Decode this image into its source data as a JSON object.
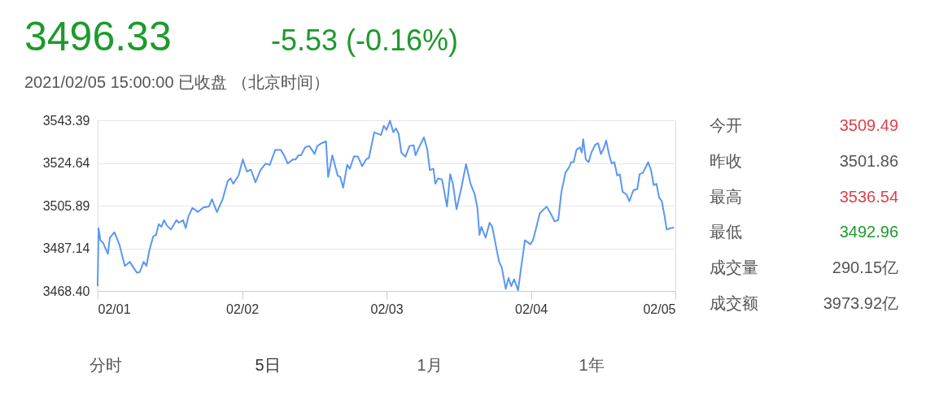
{
  "chart_data": {
    "type": "line",
    "title": "3496.33",
    "subtitle": "-5.53 (-0.16%)",
    "annotations": [
      "2021/02/05 15:00:00  已收盘 （北京时间）",
      "今开",
      "3509.49",
      "昨收",
      "3501.86",
      "最高",
      "3536.54",
      "最低",
      "3492.96",
      "成交量",
      "290.15亿",
      "成交额",
      "3973.92亿",
      "分时",
      "5日",
      "1月",
      "1年"
    ],
    "xlim": [
      "2021-02-01",
      "2021-02-05"
    ],
    "xticks": [
      {
        "value": "2021-02-01",
        "label": "02/01"
      },
      {
        "value": "2021-02-02",
        "label": "02/02"
      },
      {
        "value": "2021-02-03",
        "label": "02/03"
      },
      {
        "value": "2021-02-04",
        "label": "02/04"
      },
      {
        "value": "2021-02-05",
        "label": "02/05"
      }
    ],
    "ylim": [
      3468.4,
      3543.39
    ],
    "yticks": [
      {
        "value": 3468.4,
        "label": "3468.40"
      },
      3487.14,
      3505.89,
      3524.64,
      3543.39
    ],
    "grid": "y",
    "legend": false,
    "marker": "none",
    "line_style": "solid",
    "series": [
      {
        "color": "#5b97f2",
        "x": [
          "2021-02-01T00:00",
          "2021-02-01T00:09",
          "2021-02-01T00:27",
          "2021-02-01T00:55",
          "2021-02-01T01:42",
          "2021-02-01T02:02",
          "2021-02-01T02:47",
          "2021-02-01T03:36",
          "2021-02-01T04:31",
          "2021-02-01T05:20",
          "2021-02-01T06:32",
          "2021-02-01T06:59",
          "2021-02-01T07:39",
          "2021-02-01T08:07",
          "2021-02-01T08:34",
          "2021-02-01T09:14",
          "2021-02-01T09:42",
          "2021-02-01T10:09",
          "2021-02-01T10:35",
          "2021-02-01T11:02",
          "2021-02-01T11:30",
          "2021-02-01T12:10",
          "2021-02-01T13:05",
          "2021-02-01T13:31",
          "2021-02-01T14:12",
          "2021-02-01T14:38",
          "2021-02-01T15:06",
          "2021-02-01T15:46",
          "2021-02-01T16:41",
          "2021-02-01T17:34",
          "2021-02-01T18:29",
          "2021-02-01T19:00",
          "2021-02-01T19:49",
          "2021-02-01T20:44",
          "2021-02-01T21:37",
          "2021-02-01T22:05",
          "2021-02-01T22:32",
          "2021-02-01T23:25",
          "2021-02-02T00:07",
          "2021-02-02T00:48",
          "2021-02-02T01:28",
          "2021-02-02T02:14",
          "2021-02-02T03:03",
          "2021-02-02T03:56",
          "2021-02-02T04:36",
          "2021-02-02T05:31",
          "2021-02-02T06:26",
          "2021-02-02T07:06",
          "2021-02-02T07:34",
          "2021-02-02T08:27",
          "2021-02-02T08:54",
          "2021-02-02T09:22",
          "2021-02-02T09:48",
          "2021-02-02T10:29",
          "2021-02-02T11:10",
          "2021-02-02T12:03",
          "2021-02-02T12:30",
          "2021-02-02T13:11",
          "2021-02-02T13:57",
          "2021-02-02T14:18",
          "2021-02-02T15:00",
          "2021-02-02T15:53",
          "2021-02-02T16:19",
          "2021-02-02T16:48",
          "2021-02-02T17:28",
          "2021-02-02T17:54",
          "2021-02-02T18:36",
          "2021-02-02T19:16",
          "2021-02-02T19:57",
          "2021-02-02T20:37",
          "2021-02-02T21:04",
          "2021-02-02T21:58",
          "2021-02-02T23:05",
          "2021-02-02T23:33",
          "2021-02-03T00:00",
          "2021-02-03T00:35",
          "2021-02-03T01:08",
          "2021-02-03T01:34",
          "2021-02-03T02:01",
          "2021-02-03T02:28",
          "2021-02-03T03:09",
          "2021-02-03T03:49",
          "2021-02-03T04:31",
          "2021-02-03T04:49",
          "2021-02-03T05:37",
          "2021-02-03T06:13",
          "2021-02-03T06:45",
          "2021-02-03T07:12",
          "2021-02-03T07:48",
          "2021-02-03T08:07",
          "2021-02-03T08:34",
          "2021-02-03T09:14",
          "2021-02-03T10:03",
          "2021-02-03T10:35",
          "2021-02-03T11:02",
          "2021-02-03T11:38",
          "2021-02-03T12:24",
          "2021-02-03T13:13",
          "2021-02-03T13:58",
          "2021-02-03T14:40",
          "2021-02-03T15:06",
          "2021-02-03T15:27",
          "2021-02-03T15:46",
          "2021-02-03T16:28",
          "2021-02-03T17:08",
          "2021-02-03T17:34",
          "2021-02-03T18:16",
          "2021-02-03T18:42",
          "2021-02-03T19:09",
          "2021-02-03T19:49",
          "2021-02-03T20:17",
          "2021-02-03T20:44",
          "2021-02-03T21:12",
          "2021-02-03T21:52",
          "2021-02-03T22:19",
          "2021-02-03T23:00",
          "2021-02-03T23:54",
          "2021-02-04T00:20",
          "2021-02-04T00:48",
          "2021-02-04T01:28",
          "2021-02-04T02:36",
          "2021-02-04T03:16",
          "2021-02-04T03:56",
          "2021-02-04T04:32",
          "2021-02-04T05:04",
          "2021-02-04T05:44",
          "2021-02-04T06:26",
          "2021-02-04T06:39",
          "2021-02-04T07:06",
          "2021-02-04T07:34",
          "2021-02-04T08:08",
          "2021-02-04T08:27",
          "2021-02-04T08:41",
          "2021-02-04T09:07",
          "2021-02-04T09:35",
          "2021-02-04T10:02",
          "2021-02-04T10:42",
          "2021-02-04T11:10",
          "2021-02-04T11:37",
          "2021-02-04T12:04",
          "2021-02-04T12:30",
          "2021-02-04T12:58",
          "2021-02-04T13:25",
          "2021-02-04T13:52",
          "2021-02-04T14:20",
          "2021-02-04T14:46",
          "2021-02-04T15:13",
          "2021-02-04T15:53",
          "2021-02-04T16:21",
          "2021-02-04T17:01",
          "2021-02-04T17:41",
          "2021-02-04T18:03",
          "2021-02-04T18:36",
          "2021-02-04T19:03",
          "2021-02-04T19:29",
          "2021-02-04T19:57",
          "2021-02-04T20:24",
          "2021-02-04T20:51",
          "2021-02-04T21:17",
          "2021-02-04T21:45",
          "2021-02-04T22:12",
          "2021-02-04T22:34",
          "2021-02-04T23:05",
          "2021-02-04T23:47"
        ],
        "values": [
          3470.5,
          3496.0,
          3490.7,
          3489.5,
          3484.7,
          3491.8,
          3494.2,
          3488.9,
          3479.4,
          3481.2,
          3476.4,
          3476.7,
          3481.2,
          3479.4,
          3485.9,
          3492.4,
          3493.0,
          3497.8,
          3496.6,
          3499.5,
          3497.2,
          3495.4,
          3499.5,
          3498.4,
          3499.5,
          3496.0,
          3501.3,
          3504.9,
          3503.1,
          3505.1,
          3505.5,
          3508.7,
          3503.1,
          3508.4,
          3516.7,
          3517.9,
          3515.5,
          3519.1,
          3526.2,
          3520.9,
          3521.7,
          3516.1,
          3521.5,
          3524.4,
          3523.8,
          3530.4,
          3530.4,
          3527.4,
          3524.4,
          3526.2,
          3526.2,
          3528.0,
          3528.0,
          3531.5,
          3532.1,
          3528.6,
          3532.1,
          3533.3,
          3534.1,
          3518.5,
          3528.0,
          3519.1,
          3518.5,
          3513.8,
          3523.8,
          3522.1,
          3527.6,
          3527.4,
          3523.2,
          3526.2,
          3526.8,
          3538.1,
          3536.9,
          3541.0,
          3539.2,
          3543.2,
          3538.1,
          3539.8,
          3537.5,
          3529.2,
          3527.4,
          3532.1,
          3532.4,
          3528.0,
          3532.7,
          3535.9,
          3530.9,
          3521.5,
          3522.1,
          3515.5,
          3517.9,
          3517.3,
          3505.5,
          3519.7,
          3515.5,
          3504.3,
          3513.2,
          3524.1,
          3515.5,
          3510.8,
          3504.9,
          3493.0,
          3496.6,
          3491.8,
          3498.4,
          3496.6,
          3487.1,
          3481.2,
          3478.8,
          3469.3,
          3474.1,
          3470.5,
          3473.5,
          3468.7,
          3477.6,
          3490.7,
          3488.9,
          3490.7,
          3495.4,
          3502.5,
          3505.5,
          3502.5,
          3499.0,
          3499.5,
          3512.0,
          3520.3,
          3523.2,
          3525.0,
          3525.0,
          3530.4,
          3531.5,
          3529.2,
          3535.1,
          3526.2,
          3525.0,
          3529.2,
          3532.7,
          3533.3,
          3528.6,
          3530.9,
          3534.5,
          3528.6,
          3524.4,
          3525.0,
          3519.1,
          3519.7,
          3512.0,
          3510.8,
          3507.8,
          3512.6,
          3513.2,
          3519.7,
          3520.3,
          3522.7,
          3525.0,
          3521.5,
          3514.9,
          3515.5,
          3509.6,
          3507.8,
          3501.3,
          3495.4,
          3495.9,
          3496.3
        ]
      }
    ]
  }
}
